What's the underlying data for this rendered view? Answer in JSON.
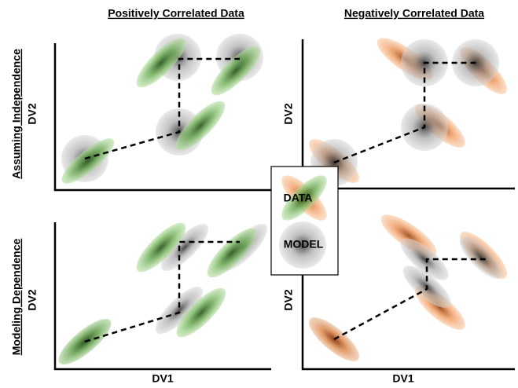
{
  "header": {
    "left": "Positively Correlated Data",
    "right": "Negatively Correlated Data"
  },
  "rows": {
    "top": "Assuming Independence",
    "bottom": "Modeling Dependence"
  },
  "axes": {
    "y_labels": [
      "DV2",
      "DV2",
      "DV2",
      "DV2"
    ],
    "x_labels": [
      "DV1",
      "DV1"
    ]
  },
  "legend": {
    "data": "DATA",
    "model": "MODEL"
  }
}
